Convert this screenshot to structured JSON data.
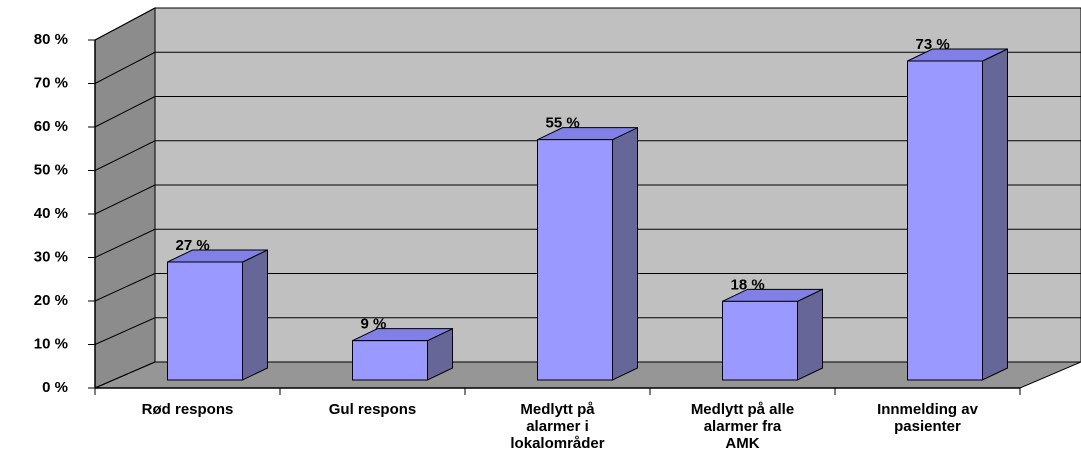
{
  "chart_data": {
    "type": "bar3d",
    "categories": [
      "Rød respons",
      "Gul respons",
      "Medlytt på\nalarmer i\nlokalområder",
      "Medlytt på alle\nalarmer fra\nAMK",
      "Innmelding av\npasienter"
    ],
    "values": [
      27,
      9,
      55,
      18,
      73
    ],
    "value_labels": [
      "27 %",
      "9 %",
      "55 %",
      "18 %",
      "73 %"
    ],
    "color": "#9999ff",
    "ylim": [
      0,
      80
    ],
    "yticks": [
      {
        "value": 0,
        "label": "0 %"
      },
      {
        "value": 10,
        "label": "10 %"
      },
      {
        "value": 20,
        "label": "20 %"
      },
      {
        "value": 30,
        "label": "30 %"
      },
      {
        "value": 40,
        "label": "40 %"
      },
      {
        "value": 50,
        "label": "50 %"
      },
      {
        "value": 60,
        "label": "60 %"
      },
      {
        "value": 70,
        "label": "70 %"
      },
      {
        "value": 80,
        "label": "80 %"
      }
    ],
    "grid": true
  }
}
